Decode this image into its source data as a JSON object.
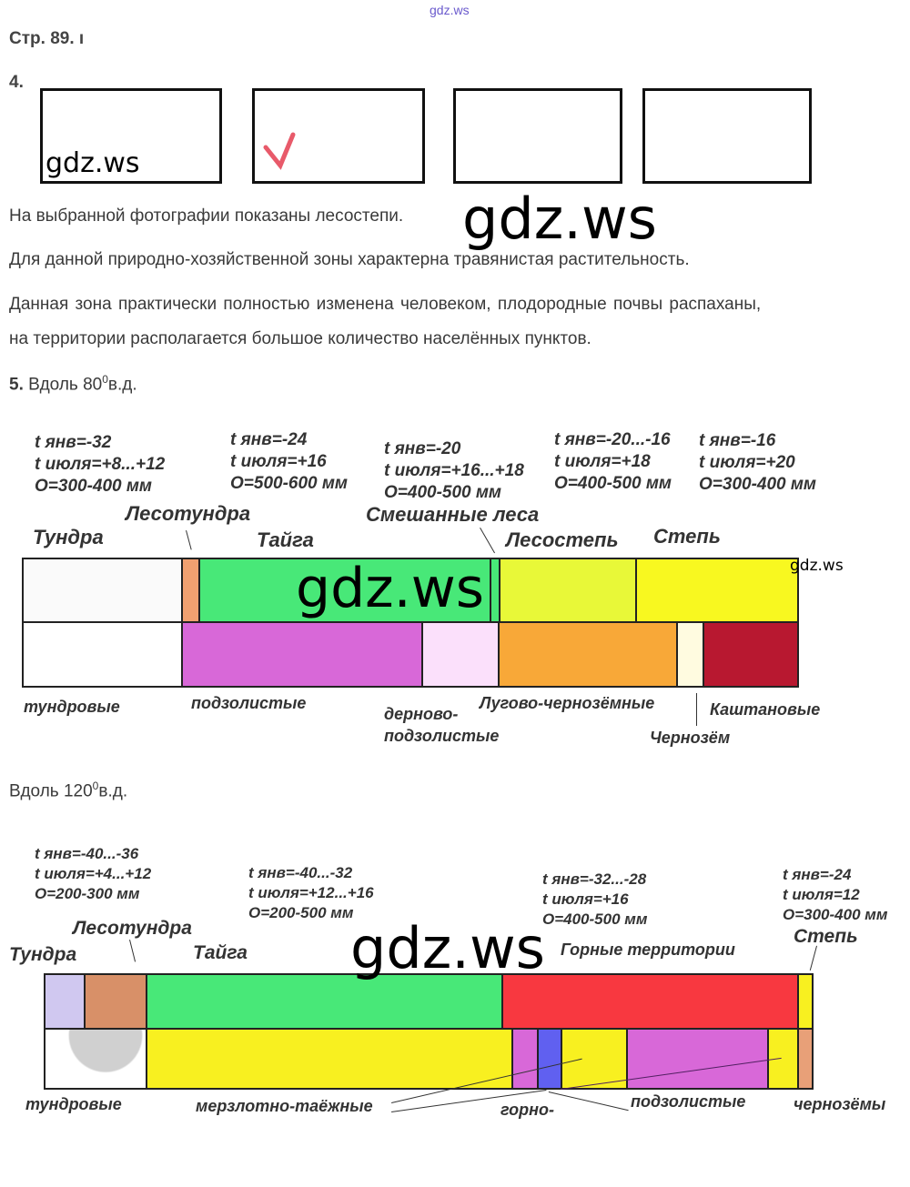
{
  "header": {
    "watermark_top": "gdz.ws",
    "page_ref": "Стр. 89. ı"
  },
  "task4": {
    "number": "4.",
    "box_watermark": "gdz.ws",
    "big_watermark": "gdz.ws",
    "paragraphs": [
      "На выбранной фотографии показаны лесостепи.",
      "Для данной природно-хозяйственной зоны характерна травянистая растительность.",
      "Данная зона практически полностью изменена человеком, плодородные почвы распаханы,",
      "на территории располагается большое количество населённых пунктов."
    ]
  },
  "task5": {
    "number": "5.",
    "heading1_text": " Вдоль 80",
    "deg": "0",
    "heading_suffix": "в.д.",
    "heading2_text": "Вдоль 120",
    "diagram1": {
      "watermark": "gdz.ws",
      "watermark_small": "gdz.ws",
      "climate": [
        [
          "t янв=-32",
          "t июля=+8...+12",
          "O=300-400 мм"
        ],
        [
          "t янв=-24",
          "t июля=+16",
          "O=500-600 мм"
        ],
        [
          "t янв=-20",
          "t июля=+16...+18",
          "O=400-500 мм"
        ],
        [
          "t янв=-20...-16",
          "t июля=+18",
          "O=400-500 мм"
        ],
        [
          "t янв=-16",
          "t июля=+20",
          "O=300-400 мм"
        ]
      ],
      "zones": [
        "Тундра",
        "Лесотундра",
        "Тайга",
        "Смешанные леса",
        "Лесостепь",
        "Степь"
      ],
      "soils": [
        "тундровые",
        "подзолистые",
        "дерново-",
        "подзолистые",
        "Лугово-чернозёмные",
        "Чернозём",
        "Каштановые"
      ],
      "colors": {
        "tundra": "#fafafa",
        "forest_tundra": "#f0a070",
        "taiga": "#48e878",
        "forest_steppe": "#e8f838",
        "steppe": "#f8f820",
        "podzol": "#d868d8",
        "sod_podzol": "#fbe0fb",
        "meadow": "#f8a838",
        "chernozem": "#fffbe0",
        "chestnut": "#b81830"
      }
    },
    "diagram2": {
      "watermark": "gdz.ws",
      "climate": [
        [
          "t янв=-40...-36",
          "t июля=+4...+12",
          "O=200-300 мм"
        ],
        [
          "t янв=-40...-32",
          "t июля=+12...+16",
          "O=200-500 мм"
        ],
        [
          "t янв=-32...-28",
          "t июля=+16",
          "O=400-500 мм"
        ],
        [
          "t янв=-24",
          "t июля=12",
          "O=300-400 мм"
        ]
      ],
      "zones": [
        "Тундра",
        "Лесотундра",
        "Тайга",
        "Горные территории",
        "Степь"
      ],
      "soils": [
        "тундровые",
        "мерзлотно-таёжные",
        "горно-",
        "подзолистые",
        "чернозёмы"
      ],
      "colors": {
        "tundra": "#d0c8f0",
        "forest_tundra": "#d89068",
        "taiga": "#48e878",
        "mountain": "#f83840",
        "steppe": "#f8f020",
        "permafrost": "#f8f020",
        "podzol": "#d868d8",
        "mountain_soil": "#6060f0",
        "chernozem": "#e8a078"
      }
    }
  }
}
